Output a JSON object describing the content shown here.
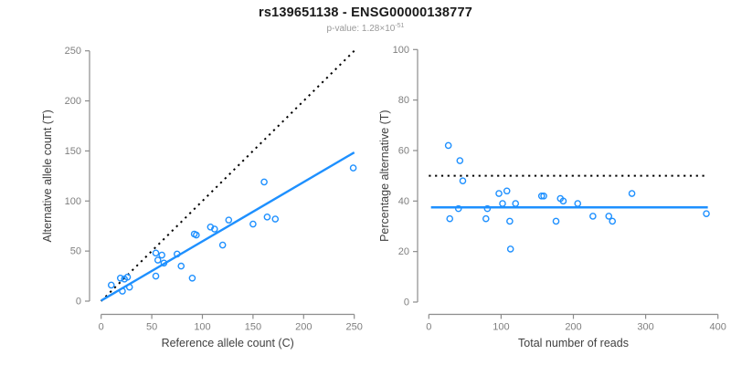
{
  "header": {
    "title": "rs139651138 - ENSG00000138777",
    "subtitle_main": "p-value: 1.28×10",
    "subtitle_sup": "-51"
  },
  "colors": {
    "accent": "#1E90FF",
    "point": "#1E90FF",
    "dashed_line": "#000000",
    "axis": "#8C8C8C",
    "tick_text": "#7F7F7F",
    "axis_title_text": "#404040",
    "title_text": "#1A1A1A",
    "subtitle_text": "#999999"
  },
  "chart_data": [
    {
      "type": "scatter",
      "name": "allele-counts-scatter",
      "xlabel": "Reference allele count (C)",
      "ylabel": "Alternative allele count (T)",
      "xlim": [
        0,
        250
      ],
      "ylim": [
        0,
        250
      ],
      "xticks": [
        0,
        50,
        100,
        150,
        200,
        250
      ],
      "yticks": [
        0,
        50,
        100,
        150,
        200,
        250
      ],
      "grid": false,
      "legend": false,
      "points": [
        [
          10,
          16
        ],
        [
          19,
          23
        ],
        [
          21,
          10
        ],
        [
          23,
          22
        ],
        [
          26,
          24
        ],
        [
          28,
          14
        ],
        [
          54,
          25
        ],
        [
          54,
          48
        ],
        [
          56,
          41
        ],
        [
          60,
          46
        ],
        [
          62,
          38
        ],
        [
          75,
          47
        ],
        [
          79,
          35
        ],
        [
          90,
          23
        ],
        [
          92,
          67
        ],
        [
          94,
          66
        ],
        [
          108,
          74
        ],
        [
          112,
          72
        ],
        [
          120,
          56
        ],
        [
          126,
          81
        ],
        [
          150,
          77
        ],
        [
          161,
          119
        ],
        [
          164,
          84
        ],
        [
          172,
          82
        ],
        [
          249,
          133
        ]
      ],
      "lines": [
        {
          "name": "identity-line",
          "x1": 0,
          "y1": 0,
          "x2": 250,
          "y2": 250,
          "dashed": true,
          "color_key": "dashed_line",
          "width": 2
        },
        {
          "name": "regression-line",
          "x1": 0,
          "y1": 0.5,
          "x2": 250,
          "y2": 148.5,
          "dashed": false,
          "color_key": "accent",
          "width": 2.4
        }
      ]
    },
    {
      "type": "scatter",
      "name": "percentage-alternative-scatter",
      "xlabel": "Total number of reads",
      "ylabel": "Percentage alternative (T)",
      "xlim": [
        0,
        400
      ],
      "ylim": [
        0,
        100
      ],
      "xticks": [
        0,
        100,
        200,
        300,
        400
      ],
      "yticks": [
        0,
        20,
        40,
        60,
        80,
        100
      ],
      "grid": false,
      "legend": false,
      "points": [
        [
          27,
          62
        ],
        [
          29,
          33
        ],
        [
          41,
          37
        ],
        [
          43,
          56
        ],
        [
          47,
          48
        ],
        [
          79,
          33
        ],
        [
          81,
          37
        ],
        [
          97,
          43
        ],
        [
          102,
          39
        ],
        [
          108,
          44
        ],
        [
          112,
          32
        ],
        [
          113,
          21
        ],
        [
          120,
          39
        ],
        [
          156,
          42
        ],
        [
          159,
          42
        ],
        [
          176,
          32
        ],
        [
          182,
          41
        ],
        [
          186,
          40
        ],
        [
          206,
          39
        ],
        [
          227,
          34
        ],
        [
          249,
          34
        ],
        [
          254,
          32
        ],
        [
          281,
          43
        ],
        [
          384,
          35
        ]
      ],
      "lines": [
        {
          "name": "expected-50pct-line",
          "x1": 0,
          "y1": 50,
          "x2": 385,
          "y2": 50,
          "dashed": true,
          "color_key": "dashed_line",
          "width": 2
        },
        {
          "name": "observed-mean-line",
          "x1": 3,
          "y1": 37.5,
          "x2": 386,
          "y2": 37.5,
          "dashed": false,
          "color_key": "accent",
          "width": 2.4
        }
      ]
    }
  ]
}
